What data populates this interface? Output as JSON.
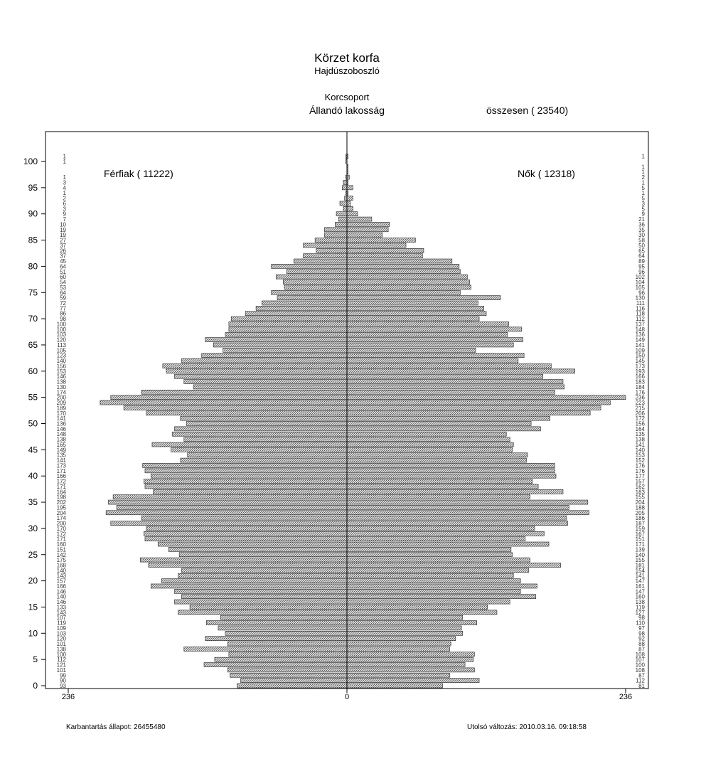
{
  "page": {
    "title": "Körzet korfa",
    "subtitle": "Hajdúszoboszló",
    "group_label": "Korcsoport",
    "population_label": "Állandó lakosság",
    "total_label": "összesen ( 23540)",
    "footer_left": "Karbantartás állapot: 26455480",
    "footer_right": "Utolsó változás: 2010.03.16. 09:18:58"
  },
  "chart_data": {
    "type": "bar",
    "orientation": "horizontal",
    "subtype": "population-pyramid",
    "title": "Körzet korfa",
    "subtitle": "Hajdúszoboszló",
    "ylabel": "Korcsoport",
    "xlim": [
      236,
      0,
      236
    ],
    "x_ticks": [
      "236",
      "0",
      "236"
    ],
    "y_ticks": [
      0,
      5,
      10,
      15,
      20,
      25,
      30,
      35,
      40,
      45,
      50,
      55,
      60,
      65,
      70,
      75,
      80,
      85,
      90,
      95,
      100
    ],
    "ages": [
      0,
      1,
      2,
      3,
      4,
      5,
      6,
      7,
      8,
      9,
      10,
      11,
      12,
      13,
      14,
      15,
      16,
      17,
      18,
      19,
      20,
      21,
      22,
      23,
      24,
      25,
      26,
      27,
      28,
      29,
      30,
      31,
      32,
      33,
      34,
      35,
      36,
      37,
      38,
      39,
      40,
      41,
      42,
      43,
      44,
      45,
      46,
      47,
      48,
      49,
      50,
      51,
      52,
      53,
      54,
      55,
      56,
      57,
      58,
      59,
      60,
      61,
      62,
      63,
      64,
      65,
      66,
      67,
      68,
      69,
      70,
      71,
      72,
      73,
      74,
      75,
      76,
      77,
      78,
      79,
      80,
      81,
      82,
      83,
      84,
      85,
      86,
      87,
      88,
      89,
      90,
      91,
      92,
      93,
      94,
      95,
      96,
      97,
      98,
      99,
      100,
      101
    ],
    "series": [
      {
        "name": "Férfiak ( 11222)",
        "side": "left",
        "values": [
          93,
          90,
          99,
          101,
          121,
          112,
          100,
          138,
          101,
          120,
          103,
          109,
          119,
          107,
          143,
          133,
          146,
          140,
          146,
          166,
          157,
          143,
          140,
          168,
          175,
          142,
          151,
          160,
          171,
          172,
          170,
          200,
          174,
          204,
          195,
          202,
          198,
          164,
          171,
          172,
          166,
          171,
          173,
          141,
          135,
          149,
          165,
          138,
          148,
          146,
          136,
          141,
          170,
          189,
          209,
          200,
          174,
          130,
          138,
          146,
          153,
          156,
          140,
          123,
          105,
          113,
          120,
          103,
          100,
          100,
          98,
          86,
          77,
          72,
          59,
          64,
          53,
          54,
          60,
          51,
          64,
          45,
          37,
          26,
          37,
          27,
          19,
          19,
          10,
          7,
          9,
          3,
          6,
          2,
          1,
          4,
          3,
          1,
          null,
          null,
          1,
          1
        ]
      },
      {
        "name": "Nők ( 12318)",
        "side": "right",
        "values": [
          81,
          112,
          87,
          108,
          100,
          107,
          108,
          87,
          88,
          92,
          98,
          97,
          110,
          98,
          127,
          119,
          138,
          160,
          147,
          161,
          147,
          141,
          154,
          181,
          155,
          140,
          139,
          171,
          151,
          167,
          159,
          187,
          186,
          205,
          188,
          204,
          155,
          183,
          162,
          157,
          177,
          176,
          176,
          152,
          153,
          140,
          141,
          138,
          135,
          164,
          156,
          172,
          206,
          215,
          223,
          236,
          176,
          184,
          183,
          166,
          193,
          173,
          145,
          150,
          109,
          141,
          149,
          136,
          148,
          137,
          112,
          118,
          116,
          111,
          130,
          96,
          105,
          104,
          102,
          96,
          95,
          89,
          64,
          65,
          50,
          58,
          30,
          35,
          36,
          21,
          9,
          5,
          3,
          5,
          1,
          5,
          1,
          2,
          1,
          1,
          null,
          1
        ]
      }
    ]
  }
}
